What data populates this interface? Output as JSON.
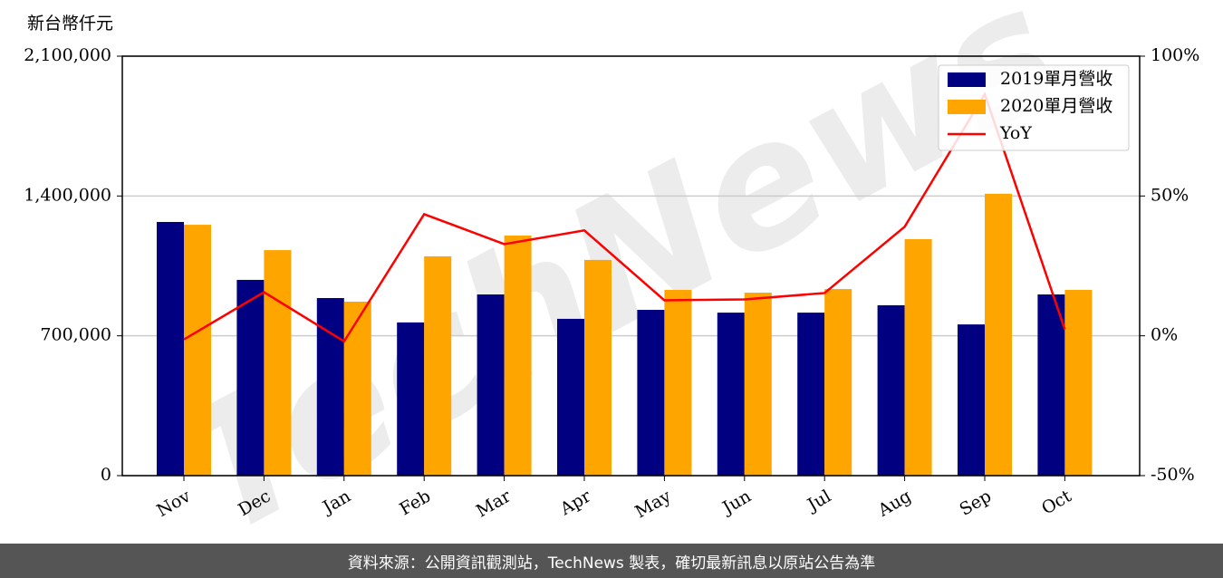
{
  "chart_data": {
    "type": "bar_line",
    "y_label": "新台幣仟元",
    "watermark": "TechNews",
    "categories": [
      "Nov",
      "Dec",
      "Jan",
      "Feb",
      "Mar",
      "Apr",
      "May",
      "Jun",
      "Jul",
      "Aug",
      "Sep",
      "Oct"
    ],
    "series": [
      {
        "name": "2019單月營收",
        "color": "#000080",
        "type": "bar",
        "values": [
          1270000,
          980000,
          889000,
          767000,
          907000,
          785000,
          830000,
          816000,
          816000,
          853000,
          757000,
          907000
        ]
      },
      {
        "name": "2020單月營收",
        "color": "#ffa500",
        "type": "bar",
        "values": [
          1256000,
          1129000,
          871000,
          1098000,
          1202000,
          1080000,
          930000,
          916000,
          934000,
          1184000,
          1411000,
          930000
        ]
      },
      {
        "name": "YoY",
        "color": "#ff0000",
        "type": "line",
        "axis": "y2",
        "values": [
          -1.3,
          15.6,
          -2,
          43.5,
          32.8,
          37.7,
          12.7,
          13,
          15.3,
          39,
          86.4,
          2.3
        ]
      }
    ],
    "ylim": [
      0,
      2100000
    ],
    "yticks": [
      0,
      {
        "value": 700000,
        "label": "700,000"
      },
      {
        "value": 1400000,
        "label": "1,400,000"
      },
      {
        "value": 2100000,
        "label": "2,100,000"
      }
    ],
    "y2lim": [
      -50,
      100
    ],
    "y2ticks": [
      {
        "value": -50,
        "label": "-50%"
      },
      {
        "value": 0,
        "label": "0%"
      },
      {
        "value": 50,
        "label": "50%"
      },
      {
        "value": 100,
        "label": "100%"
      }
    ],
    "grid": true,
    "legend": "upper right"
  },
  "footer": "資料來源：公開資訊觀測站，TechNews 製表，確切最新訊息以原站公告為準"
}
